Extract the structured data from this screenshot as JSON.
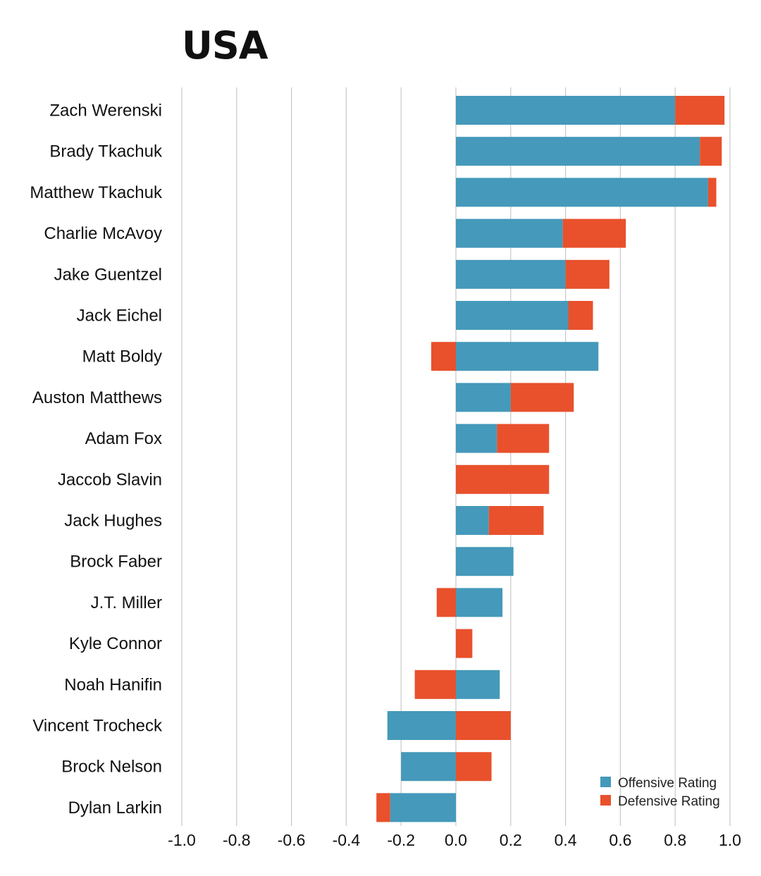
{
  "chart_data": {
    "type": "bar",
    "orientation": "horizontal",
    "stacking": "diverging",
    "title": "USA",
    "xlim": [
      -1.0,
      1.0
    ],
    "grid": true,
    "legend_position": "bottom-right",
    "xticks": [
      "-1.0",
      "-0.8",
      "-0.6",
      "-0.4",
      "-0.2",
      "0.0",
      "0.2",
      "0.4",
      "0.6",
      "0.8",
      "1.0"
    ],
    "categories": [
      "Zach Werenski",
      "Brady Tkachuk",
      "Matthew Tkachuk",
      "Charlie McAvoy",
      "Jake Guentzel",
      "Jack Eichel",
      "Matt Boldy",
      "Auston Matthews",
      "Adam Fox",
      "Jaccob Slavin",
      "Jack Hughes",
      "Brock Faber",
      "J.T. Miller",
      "Kyle Connor",
      "Noah Hanifin",
      "Vincent Trocheck",
      "Brock Nelson",
      "Dylan Larkin"
    ],
    "series": [
      {
        "name": "Offensive Rating",
        "color": "#4599BA",
        "values": [
          0.8,
          0.89,
          0.92,
          0.39,
          0.4,
          0.41,
          0.52,
          0.2,
          0.15,
          0.0,
          0.12,
          0.21,
          0.17,
          0.0,
          0.16,
          -0.25,
          -0.2,
          -0.24
        ]
      },
      {
        "name": "Defensive Rating",
        "color": "#E8512C",
        "values": [
          0.18,
          0.08,
          0.03,
          0.23,
          0.16,
          0.09,
          -0.09,
          0.23,
          0.19,
          0.34,
          0.2,
          0.0,
          -0.07,
          0.06,
          -0.15,
          0.2,
          0.13,
          -0.05
        ]
      }
    ]
  }
}
